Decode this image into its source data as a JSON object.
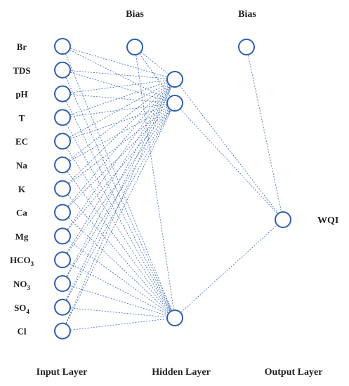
{
  "layers": {
    "input": "Input Layer",
    "hidden": "Hidden Layer",
    "output": "Output Layer"
  },
  "bias_labels": [
    "Bias",
    "Bias"
  ],
  "inputs": [
    {
      "base": "Br",
      "sub": ""
    },
    {
      "base": "TDS",
      "sub": ""
    },
    {
      "base": "pH",
      "sub": ""
    },
    {
      "base": "T",
      "sub": ""
    },
    {
      "base": "EC",
      "sub": ""
    },
    {
      "base": "Na",
      "sub": ""
    },
    {
      "base": "K",
      "sub": ""
    },
    {
      "base": "Ca",
      "sub": ""
    },
    {
      "base": "Mg",
      "sub": ""
    },
    {
      "base": "HCO",
      "sub": "3"
    },
    {
      "base": "NO",
      "sub": "3"
    },
    {
      "base": "SO",
      "sub": "4"
    },
    {
      "base": "Cl",
      "sub": ""
    }
  ],
  "output": "WQI",
  "colors": {
    "node_stroke": "#2f5fb0",
    "edge": "#3a66b8"
  }
}
